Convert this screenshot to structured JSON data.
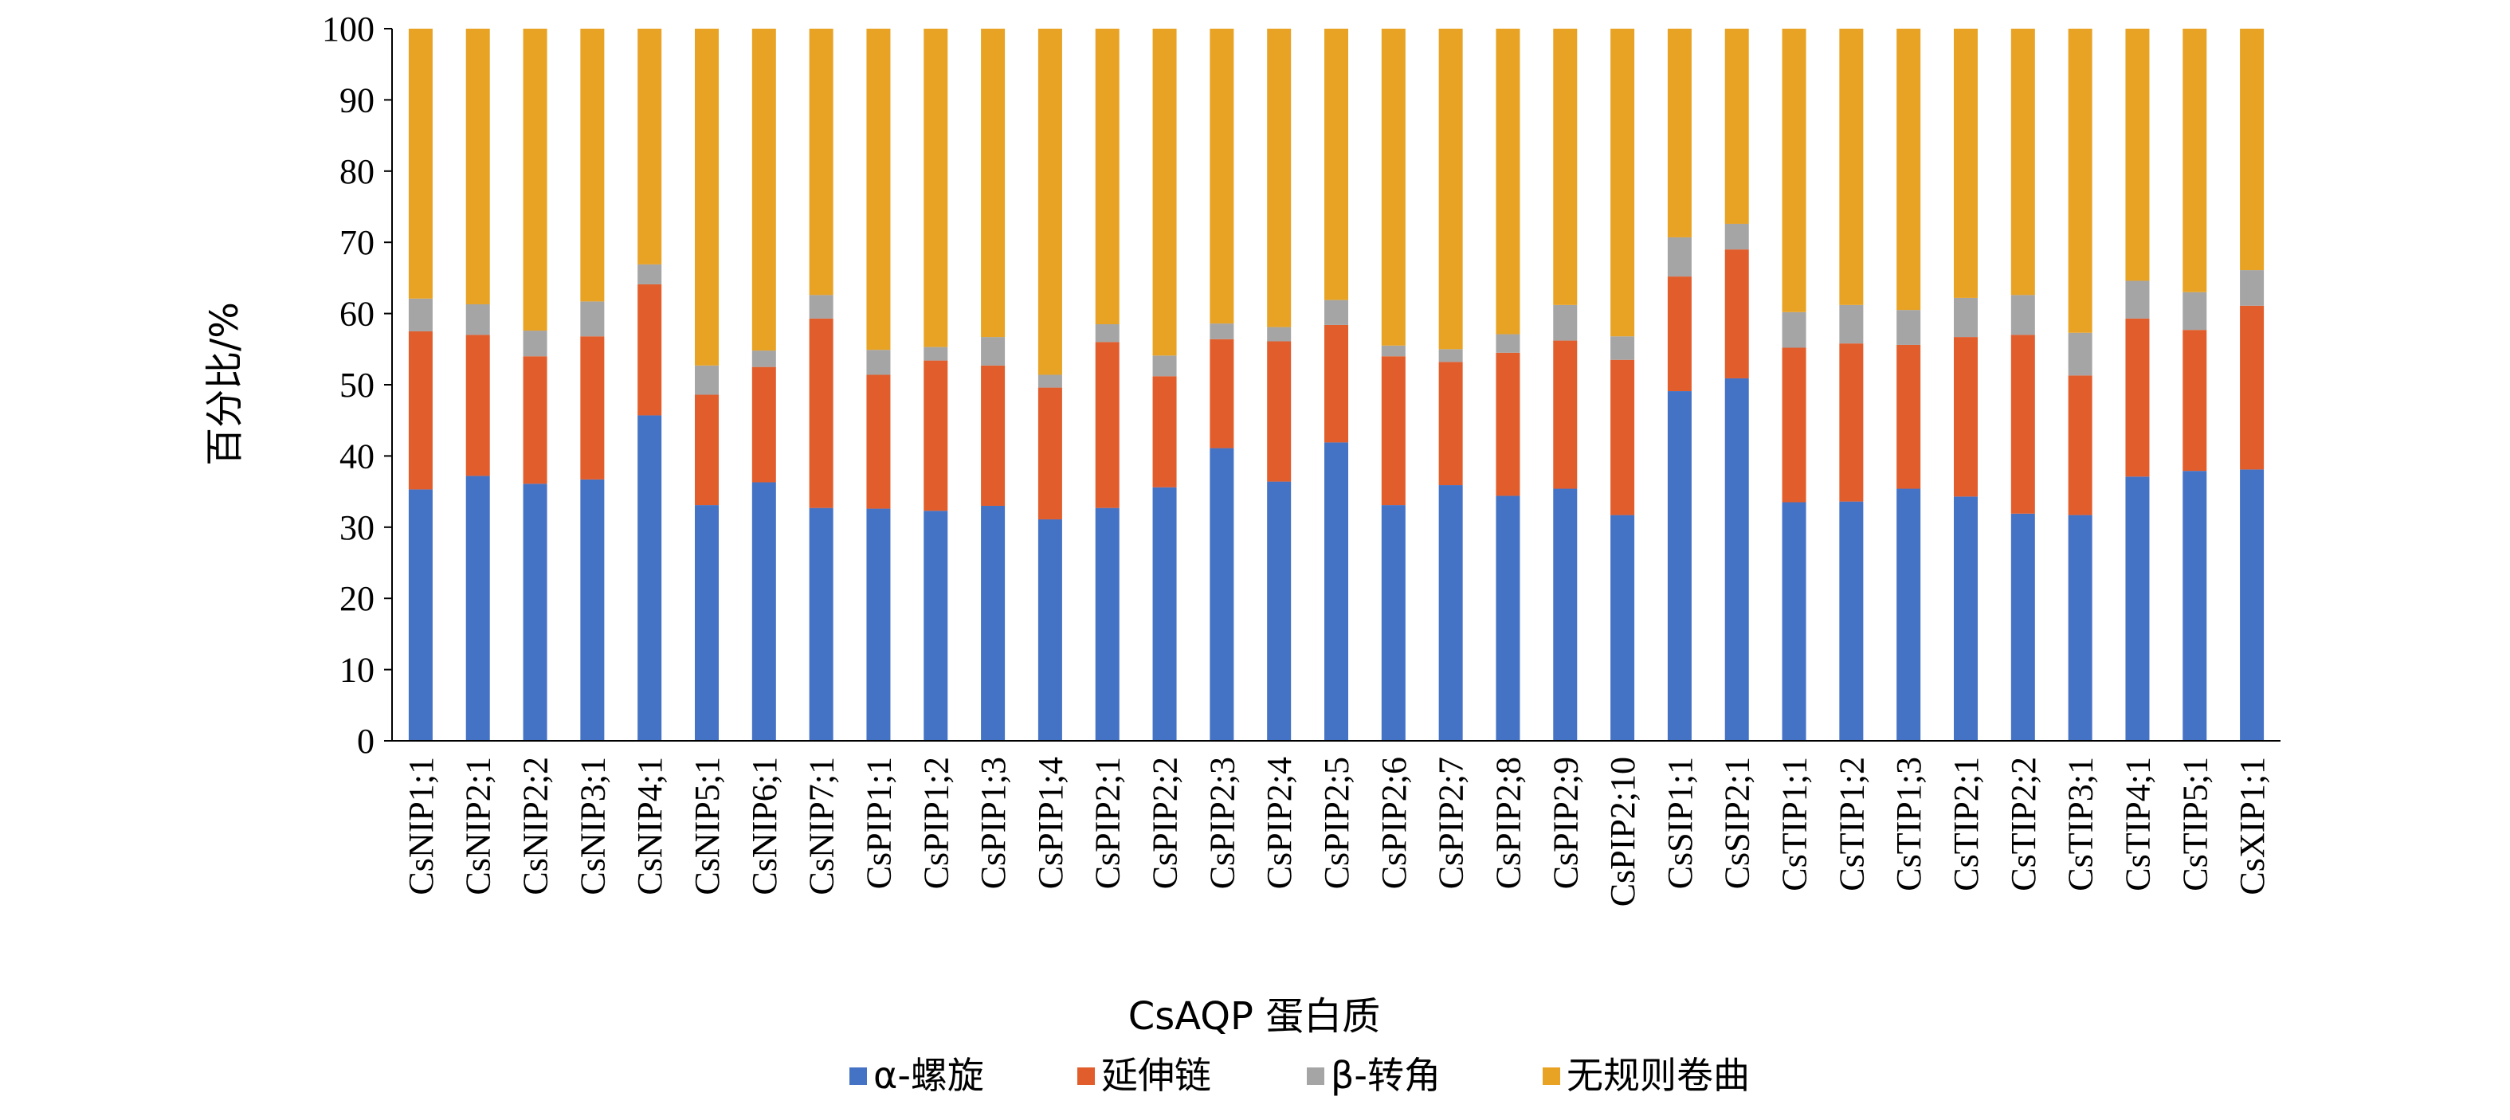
{
  "chart_data": {
    "type": "bar",
    "stacked": true,
    "title": "",
    "xlabel": "CsAQP 蛋白质",
    "ylabel": "百分比/%",
    "ylim": [
      0,
      100
    ],
    "yticks": [
      0,
      10,
      20,
      30,
      40,
      50,
      60,
      70,
      80,
      90,
      100
    ],
    "grid": false,
    "legend_position": "bottom",
    "categories": [
      "CsNIP1;1",
      "CsNIP2;1",
      "CsNIP2;2",
      "CsNIP3;1",
      "CsNIP4;1",
      "CsNIP5;1",
      "CsNIP6;1",
      "CsNIP7;1",
      "CsPIP1;1",
      "CsPIP1;2",
      "CsPIP1;3",
      "CsPIP1;4",
      "CsPIP2;1",
      "CsPIP2;2",
      "CsPIP2;3",
      "CsPIP2;4",
      "CsPIP2;5",
      "CsPIP2;6",
      "CsPIP2;7",
      "CsPIP2;8",
      "CsPIP2;9",
      "CsPIP2;10",
      "CsSIP1;1",
      "CsSIP2;1",
      "CsTIP1;1",
      "CsTIP1;2",
      "CsTIP1;3",
      "CsTIP2;1",
      "CsTIP2;2",
      "CsTIP3;1",
      "CsTIP4;1",
      "CsTIP5;1",
      "CsXIP1;1"
    ],
    "series": [
      {
        "name": "α-螺旋",
        "color": "#4472C4",
        "values": [
          35.3,
          37.2,
          36.1,
          36.7,
          45.7,
          33.1,
          36.3,
          32.7,
          32.6,
          32.3,
          33.0,
          31.1,
          32.7,
          35.6,
          41.1,
          36.4,
          41.9,
          33.1,
          35.9,
          34.4,
          35.4,
          31.7,
          49.1,
          50.9,
          33.5,
          33.6,
          35.4,
          34.3,
          31.9,
          31.7,
          37.1,
          37.9,
          38.1
        ]
      },
      {
        "name": "延伸链",
        "color": "#E15D2C",
        "values": [
          22.2,
          19.8,
          17.9,
          20.1,
          18.4,
          15.5,
          16.2,
          26.6,
          18.8,
          21.1,
          19.7,
          18.5,
          23.3,
          15.6,
          15.3,
          19.7,
          16.5,
          20.9,
          17.3,
          20.1,
          20.8,
          21.8,
          16.1,
          18.1,
          21.7,
          22.2,
          20.2,
          22.4,
          25.1,
          19.6,
          22.2,
          19.8,
          23.0
        ]
      },
      {
        "name": "β-转角",
        "color": "#A5A5A5",
        "values": [
          4.6,
          4.3,
          3.6,
          4.9,
          2.8,
          4.1,
          2.3,
          3.3,
          3.5,
          1.9,
          4.0,
          1.8,
          2.5,
          2.9,
          2.2,
          2.0,
          3.5,
          1.5,
          1.8,
          2.6,
          5.0,
          3.3,
          5.5,
          3.6,
          5.0,
          5.4,
          4.9,
          5.5,
          5.6,
          6.0,
          5.3,
          5.3,
          5.0
        ]
      },
      {
        "name": "无规则卷曲",
        "color": "#E8A325",
        "values": [
          37.9,
          38.7,
          42.4,
          38.3,
          33.1,
          47.3,
          45.2,
          37.4,
          45.1,
          44.7,
          43.3,
          48.6,
          41.5,
          45.9,
          41.4,
          41.9,
          38.1,
          44.5,
          45.0,
          42.9,
          38.8,
          43.2,
          29.3,
          27.4,
          39.8,
          38.8,
          39.5,
          37.8,
          37.4,
          42.7,
          35.4,
          37.0,
          33.9
        ]
      }
    ]
  }
}
